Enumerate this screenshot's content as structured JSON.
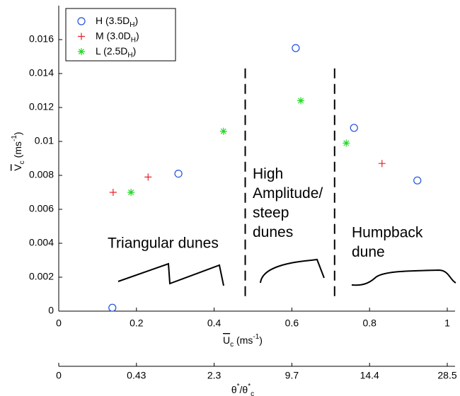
{
  "chart_data": {
    "type": "scatter",
    "xlabel": [
      [
        "U",
        "over"
      ],
      [
        "c",
        "sub"
      ],
      [
        " (ms",
        "normal"
      ],
      [
        "-1",
        "sup"
      ],
      [
        ")",
        "normal"
      ]
    ],
    "ylabel": [
      [
        "V",
        "over"
      ],
      [
        "c",
        "sub"
      ],
      [
        " (ms",
        "normal"
      ],
      [
        "-1",
        "sup"
      ],
      [
        ")",
        "normal"
      ]
    ],
    "x2label": [
      [
        "θ",
        "normal"
      ],
      [
        "*",
        "sup"
      ],
      [
        "/θ",
        "normal"
      ],
      [
        "*",
        "sup"
      ],
      [
        "c",
        "sub"
      ]
    ],
    "xlim": [
      0,
      1.02
    ],
    "ylim": [
      0,
      0.018
    ],
    "xticks": [
      0,
      0.2,
      0.4,
      0.6,
      0.8,
      1
    ],
    "yticks": [
      0,
      0.002,
      0.004,
      0.006,
      0.008,
      0.01,
      0.012,
      0.014,
      0.016
    ],
    "x2ticklabels": [
      "0",
      "0.43",
      "2.3",
      "9.7",
      "14.4",
      "28.5"
    ],
    "regime_boundaries": [
      0.48,
      0.71
    ],
    "series": [
      {
        "name": [
          [
            "H (3.5D",
            "normal"
          ],
          [
            "H",
            "sub"
          ],
          [
            ")",
            "normal"
          ]
        ],
        "marker": "circle",
        "color": "#1f4fe0",
        "x": [
          0.138,
          0.308,
          0.61,
          0.76,
          0.923
        ],
        "values": [
          0.0002,
          0.0081,
          0.0155,
          0.0108,
          0.0077
        ]
      },
      {
        "name": [
          [
            "M (3.0D",
            "normal"
          ],
          [
            "H",
            "sub"
          ],
          [
            ")",
            "normal"
          ]
        ],
        "marker": "plus",
        "color": "#e8202a",
        "x": [
          0.14,
          0.23,
          0.832
        ],
        "values": [
          0.007,
          0.0079,
          0.0087
        ]
      },
      {
        "name": [
          [
            "L (2.5D",
            "normal"
          ],
          [
            "H",
            "sub"
          ],
          [
            ")",
            "normal"
          ]
        ],
        "marker": "star",
        "color": "#22d822",
        "x": [
          0.186,
          0.424,
          0.623,
          0.74
        ],
        "values": [
          0.007,
          0.0106,
          0.0124,
          0.0099
        ]
      }
    ],
    "annotations": {
      "triangular": [
        "Triangular dunes"
      ],
      "high": [
        "High",
        "Amplitude/",
        "steep",
        "dunes"
      ],
      "humpback": [
        "Humpback",
        "dune"
      ]
    }
  }
}
